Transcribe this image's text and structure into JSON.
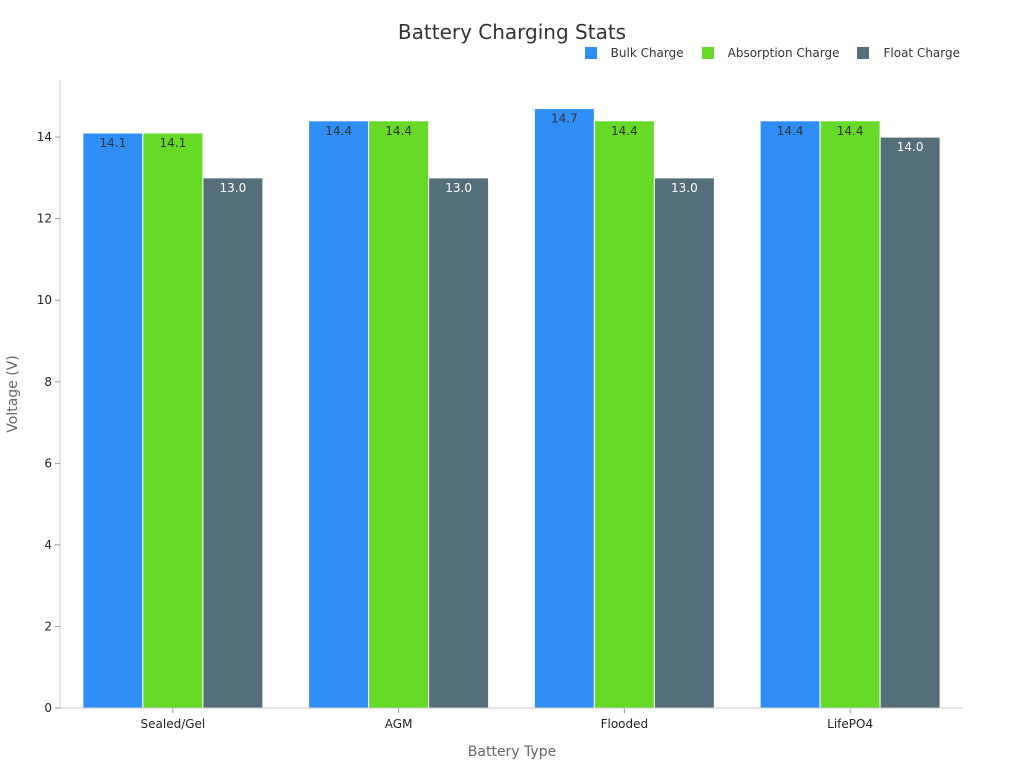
{
  "chart_data": {
    "type": "bar",
    "title": "Battery Charging Stats",
    "xlabel": "Battery Type",
    "ylabel": "Voltage (V)",
    "categories": [
      "Sealed/Gel",
      "AGM",
      "Flooded",
      "LifePO4"
    ],
    "series": [
      {
        "name": "Bulk Charge",
        "color": "#2f8ff7",
        "values": [
          14.1,
          14.4,
          14.7,
          14.4
        ],
        "labels": [
          "14.1",
          "14.4",
          "14.7",
          "14.4"
        ],
        "label_color": "#333333"
      },
      {
        "name": "Absorption Charge",
        "color": "#66da26",
        "values": [
          14.1,
          14.4,
          14.4,
          14.4
        ],
        "labels": [
          "14.1",
          "14.4",
          "14.4",
          "14.4"
        ],
        "label_color": "#333333"
      },
      {
        "name": "Float Charge",
        "color": "#546e7a",
        "values": [
          13.0,
          13.0,
          13.0,
          14.0
        ],
        "labels": [
          "13.0",
          "13.0",
          "13.0",
          "14.0"
        ],
        "label_color": "#ffffff"
      }
    ],
    "ylim": [
      0,
      15.4
    ],
    "yticks": [
      0,
      2,
      4,
      6,
      8,
      10,
      12,
      14
    ],
    "ytick_labels": [
      "0",
      "2",
      "4",
      "6",
      "8",
      "10",
      "12",
      "14"
    ],
    "grid": false,
    "legend_position": "top-right"
  }
}
